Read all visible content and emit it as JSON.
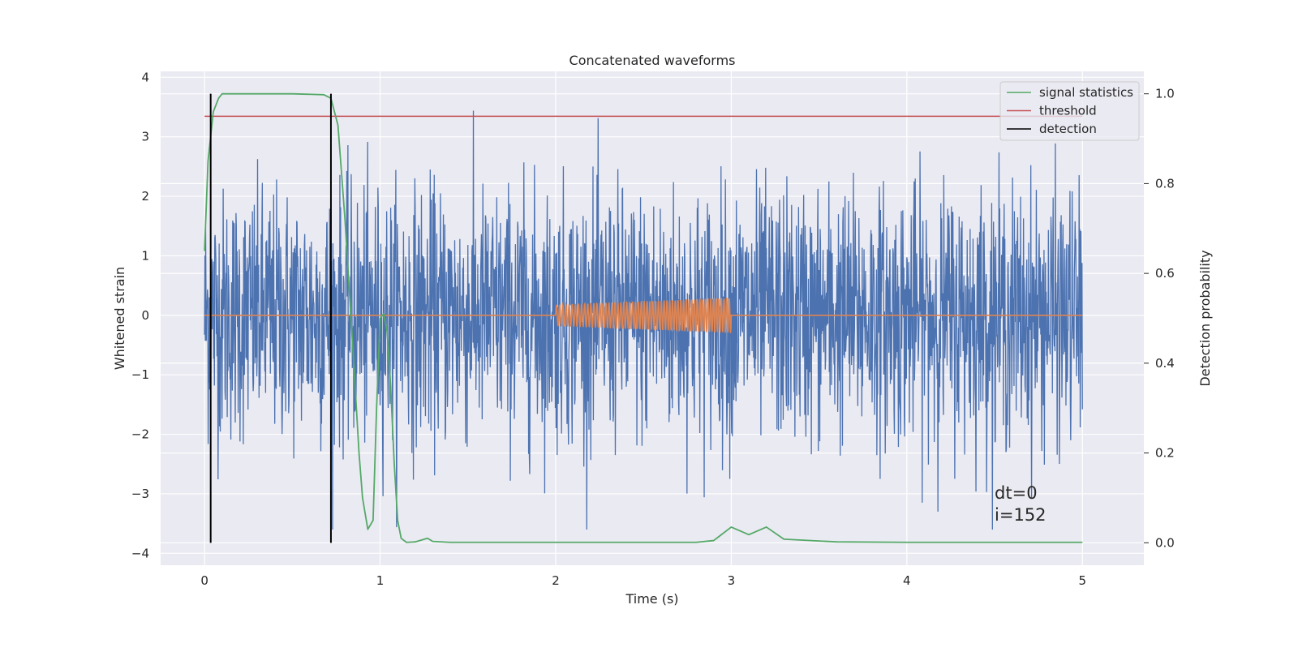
{
  "chart_data": {
    "type": "line",
    "title": "Concatenated waveforms",
    "xlabel": "Time (s)",
    "ylabel_left": "Whitened strain",
    "ylabel_right": "Detection probability",
    "xlim": [
      -0.25,
      5.35
    ],
    "ylim_left": [
      -4.2,
      4.1
    ],
    "ylim_right": [
      -0.05,
      1.05
    ],
    "x_ticks": [
      "0",
      "1",
      "2",
      "3",
      "4",
      "5"
    ],
    "y_left_ticks": [
      "−4",
      "−3",
      "−2",
      "−1",
      "0",
      "1",
      "2",
      "3",
      "4"
    ],
    "y_right_ticks": [
      "0.0",
      "0.2",
      "0.4",
      "0.6",
      "0.8",
      "1.0"
    ],
    "grid": true,
    "legend_position": "top-right",
    "series": [
      {
        "name": "whitened strain noise",
        "axis": "left",
        "color": "#4c72b0",
        "style": "dense noise, amplitude up to about ±3.6, spanning 0 to 5 s"
      },
      {
        "name": "injected waveform",
        "axis": "left",
        "color": "#dd8452",
        "x": [
          0.0,
          2.0,
          2.0,
          2.5,
          3.0,
          3.0,
          5.0
        ],
        "y": [
          0.0,
          0.0,
          0.18,
          0.22,
          0.3,
          0.0,
          0.0
        ],
        "note": "chirp oscillation between 2 and 3 s, amplitude rising from 0.18 to 0.3"
      },
      {
        "name": "signal statistics",
        "axis": "right",
        "color": "#55a868",
        "x": [
          0.0,
          0.02,
          0.05,
          0.08,
          0.1,
          0.15,
          0.3,
          0.5,
          0.68,
          0.72,
          0.76,
          0.8,
          0.85,
          0.88,
          0.9,
          0.93,
          0.96,
          0.98,
          1.0,
          1.02,
          1.04,
          1.06,
          1.08,
          1.1,
          1.12,
          1.15,
          1.2,
          1.27,
          1.3,
          1.4,
          2.0,
          2.8,
          2.9,
          3.0,
          3.1,
          3.2,
          3.3,
          3.6,
          4.0,
          5.0
        ],
        "y": [
          0.65,
          0.85,
          0.96,
          0.99,
          1.0,
          1.0,
          1.0,
          1.0,
          0.998,
          0.99,
          0.93,
          0.72,
          0.4,
          0.2,
          0.1,
          0.03,
          0.05,
          0.3,
          0.5,
          0.51,
          0.47,
          0.35,
          0.18,
          0.05,
          0.01,
          0.001,
          0.002,
          0.01,
          0.003,
          0.001,
          0.001,
          0.001,
          0.005,
          0.035,
          0.018,
          0.035,
          0.008,
          0.002,
          0.001,
          0.001
        ]
      },
      {
        "name": "threshold",
        "axis": "right",
        "color": "#c44e52",
        "x": [
          0.0,
          5.0
        ],
        "y": [
          0.95,
          0.95
        ]
      },
      {
        "name": "detection",
        "axis": "right",
        "color": "#000000",
        "x": [
          0.035,
          0.72
        ],
        "y_range": [
          0.0,
          1.0
        ],
        "note": "vertical lines at detection times"
      }
    ],
    "legend": [
      {
        "label": "signal statistics",
        "color": "#55a868"
      },
      {
        "label": "threshold",
        "color": "#c44e52"
      },
      {
        "label": "detection",
        "color": "#000000"
      }
    ],
    "annotations": [
      "dt=0",
      "i=152"
    ]
  }
}
